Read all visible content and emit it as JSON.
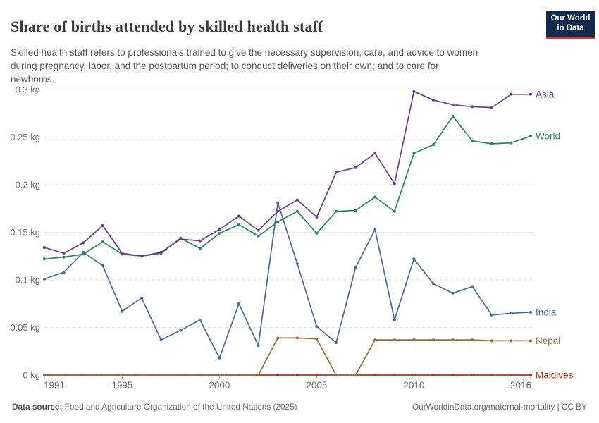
{
  "header": {
    "title": "Share of births attended by skilled health staff",
    "subtitle": "Skilled health staff refers to professionals trained to give the necessary supervision, care, and advice to women\nduring pregnancy, labor, and the postpartum period; to conduct deliveries on their own; and to care for\nnewborns.",
    "logo": {
      "line1": "Our World",
      "line2": "in Data",
      "bg_color": "#122A4E",
      "accent_color": "#D03A47"
    }
  },
  "chart_data": {
    "type": "line",
    "title": "Share of births attended by skilled health staff",
    "xlabel": "",
    "ylabel": "",
    "unit": "kg",
    "xlim": [
      1991,
      2016
    ],
    "ylim": [
      0,
      0.3
    ],
    "grid": "horizontal-dashed",
    "legend_position": "right-end-labels",
    "x": [
      1991,
      1992,
      1993,
      1994,
      1995,
      1996,
      1997,
      1998,
      1999,
      2000,
      2001,
      2002,
      2003,
      2004,
      2005,
      2006,
      2007,
      2008,
      2009,
      2010,
      2011,
      2012,
      2013,
      2014,
      2015,
      2016
    ],
    "x_ticks": [
      {
        "value": 1991,
        "label": "1991"
      },
      {
        "value": 1995,
        "label": "1995"
      },
      {
        "value": 2000,
        "label": "2000"
      },
      {
        "value": 2005,
        "label": "2005"
      },
      {
        "value": 2010,
        "label": "2010"
      },
      {
        "value": 2016,
        "label": "2016"
      }
    ],
    "y_ticks": [
      {
        "value": 0,
        "label": "0 kg"
      },
      {
        "value": 0.05,
        "label": "0.05 kg"
      },
      {
        "value": 0.1,
        "label": "0.1 kg"
      },
      {
        "value": 0.15,
        "label": "0.15 kg"
      },
      {
        "value": 0.2,
        "label": "0.2 kg"
      },
      {
        "value": 0.25,
        "label": "0.25 kg"
      },
      {
        "value": 0.3,
        "label": "0.3 kg"
      }
    ],
    "series": [
      {
        "name": "Asia",
        "color": "#6D3E91",
        "values": [
          0.134,
          0.128,
          0.139,
          0.157,
          0.128,
          0.125,
          0.129,
          0.143,
          0.141,
          0.153,
          0.167,
          0.152,
          0.172,
          0.184,
          0.166,
          0.213,
          0.218,
          0.233,
          0.201,
          0.298,
          0.289,
          0.284,
          0.282,
          0.281,
          0.295,
          0.295
        ]
      },
      {
        "name": "World",
        "color": "#2C8465",
        "values": [
          0.122,
          0.124,
          0.127,
          0.14,
          0.127,
          0.125,
          0.128,
          0.144,
          0.133,
          0.149,
          0.158,
          0.146,
          0.161,
          0.172,
          0.149,
          0.172,
          0.173,
          0.187,
          0.172,
          0.233,
          0.242,
          0.272,
          0.246,
          0.243,
          0.244,
          0.251
        ]
      },
      {
        "name": "India",
        "color": "#4C6A9C",
        "values": [
          0.101,
          0.108,
          0.129,
          0.115,
          0.067,
          0.081,
          0.037,
          0.047,
          0.058,
          0.018,
          0.075,
          0.031,
          0.181,
          0.117,
          0.051,
          0.034,
          0.113,
          0.153,
          0.058,
          0.122,
          0.096,
          0.086,
          0.093,
          0.063,
          0.065,
          0.066
        ]
      },
      {
        "name": "Nepal",
        "color": "#996D39",
        "values": [
          0,
          0,
          0,
          0,
          0,
          0,
          0,
          0,
          0,
          0,
          0,
          0,
          0.039,
          0.039,
          0.038,
          0,
          0,
          0.037,
          0.037,
          0.037,
          0.037,
          0.037,
          0.037,
          0.036,
          0.036,
          0.036
        ]
      },
      {
        "name": "Maldives",
        "color": "#B13507",
        "values": [
          0,
          0,
          0,
          0,
          0,
          0,
          0,
          0,
          0,
          0,
          0,
          0,
          0,
          0,
          0,
          0,
          0,
          0,
          0,
          0,
          0,
          0,
          0,
          0,
          0,
          0
        ]
      }
    ],
    "style": {
      "gridline_color": "#dcdcdc",
      "tick_text_color": "#6e6e6e",
      "tick_mark_color": "#a0a0a0"
    }
  },
  "footer": {
    "source_label": "Data source:",
    "source_text": " Food and Agriculture Organization of the United Nations (2025)",
    "link_text": "OurWorldinData.org/maternal-mortality | CC BY"
  }
}
